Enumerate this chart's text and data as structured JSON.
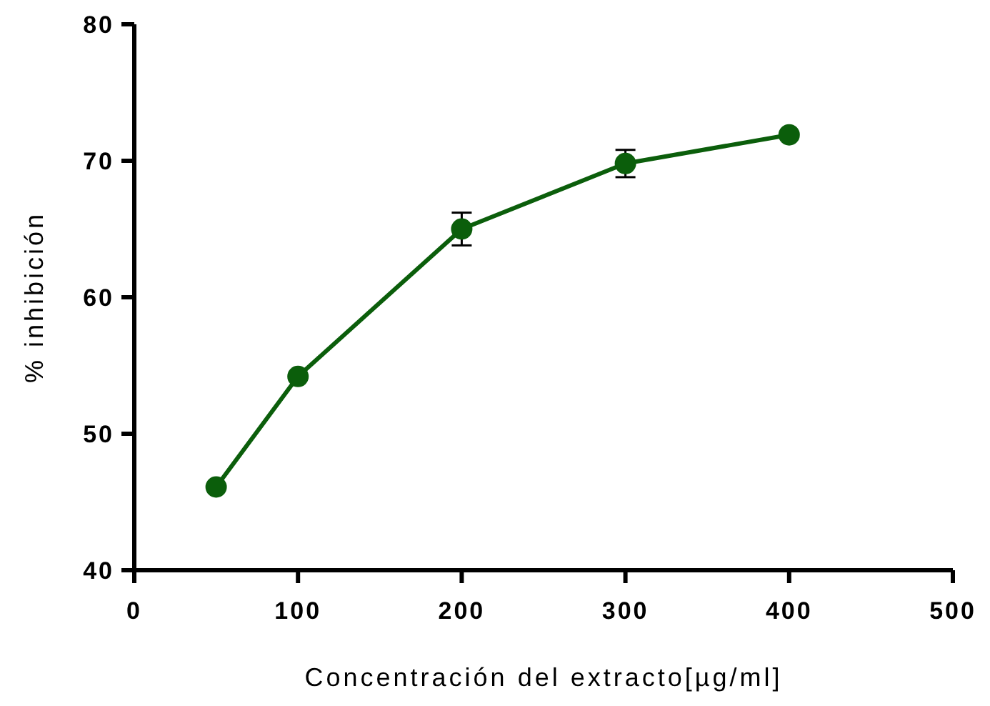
{
  "chart_data": {
    "type": "line",
    "xlabel": "Concentración del extracto[µg/ml]",
    "ylabel": "% inhibición",
    "x": [
      50,
      100,
      200,
      300,
      400
    ],
    "series": [
      {
        "color": "#0b5e0b",
        "values": [
          46.1,
          54.2,
          65.0,
          69.8,
          71.9
        ],
        "errors": [
          null,
          null,
          1.2,
          1.0,
          null
        ]
      }
    ],
    "xlim": [
      0,
      500
    ],
    "xticks": [
      0,
      100,
      200,
      300,
      400,
      500
    ],
    "ylim": [
      40,
      80
    ],
    "yticks": [
      40,
      50,
      60,
      70,
      80
    ],
    "grid": false,
    "marker": "circle",
    "line_style": "solid"
  }
}
